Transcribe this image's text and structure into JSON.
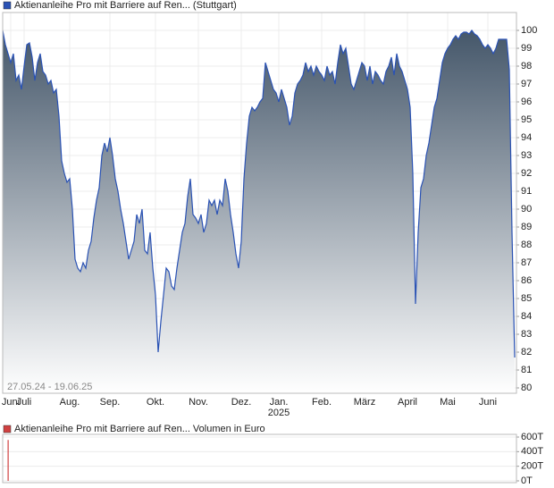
{
  "chart_data": [
    {
      "type": "area",
      "title": "Aktienanleihe Pro mit Barriere auf Ren... (Stuttgart)",
      "color": "#2a52b4",
      "fill_top": "#45576a",
      "date_range": "27.05.24 - 19.06.25",
      "year_label": "2025",
      "grid": true,
      "xlim": [
        0,
        191
      ],
      "ylim": [
        79.7,
        101
      ],
      "yticks": [
        80,
        81,
        82,
        83,
        84,
        85,
        86,
        87,
        88,
        89,
        90,
        91,
        92,
        93,
        94,
        95,
        96,
        97,
        98,
        99,
        100
      ],
      "xticks": [
        {
          "value": 3,
          "label": "Juni"
        },
        {
          "value": 8,
          "label": "Juli"
        },
        {
          "value": 25,
          "label": "Aug."
        },
        {
          "value": 40,
          "label": "Sep."
        },
        {
          "value": 57,
          "label": "Okt."
        },
        {
          "value": 73,
          "label": "Nov."
        },
        {
          "value": 89,
          "label": "Dez."
        },
        {
          "value": 103,
          "label": "Jan."
        },
        {
          "value": 119,
          "label": "Feb."
        },
        {
          "value": 135,
          "label": "März"
        },
        {
          "value": 151,
          "label": "April"
        },
        {
          "value": 166,
          "label": "Mai"
        },
        {
          "value": 181,
          "label": "Juni"
        }
      ],
      "values": [
        100,
        99.2,
        98.7,
        98.2,
        98.7,
        97.2,
        97.5,
        96.7,
        98,
        99.2,
        99.3,
        98.5,
        97.2,
        98.2,
        98.7,
        97.7,
        97.5,
        97,
        97.2,
        96.5,
        96.7,
        95.2,
        92.7,
        92,
        91.5,
        91.7,
        90,
        87.2,
        86.7,
        86.5,
        87,
        86.7,
        87.7,
        88.2,
        89.5,
        90.5,
        91.2,
        93,
        93.7,
        93.2,
        94,
        93,
        91.7,
        91,
        90,
        89.2,
        88.2,
        87.2,
        87.7,
        88.2,
        89.7,
        89.2,
        90,
        87.7,
        87.5,
        88.7,
        86.7,
        85.2,
        82,
        83.7,
        85.2,
        86.7,
        86.5,
        85.7,
        85.5,
        86.7,
        87.7,
        88.7,
        89.2,
        90.7,
        91.7,
        89.7,
        89.5,
        89.2,
        89.7,
        88.7,
        89.2,
        90.5,
        90.2,
        90.5,
        89.7,
        90.5,
        90.2,
        91.7,
        91,
        89.7,
        88.7,
        87.5,
        86.7,
        88.2,
        91.7,
        93.7,
        95.2,
        95.7,
        95.5,
        95.7,
        96,
        96.2,
        98.2,
        97.7,
        97.2,
        96.7,
        96.5,
        96,
        96.7,
        96.2,
        95.7,
        94.7,
        95.2,
        96.5,
        97,
        97.2,
        97.5,
        98.2,
        97.7,
        98,
        97.5,
        98,
        97.7,
        97.5,
        97.2,
        98,
        97.5,
        97.7,
        97,
        98.2,
        99.2,
        98.7,
        99,
        98,
        97,
        96.7,
        97.2,
        97.7,
        98.2,
        98,
        97.2,
        98,
        97,
        97.7,
        97.5,
        97.2,
        97,
        97.7,
        98,
        98.5,
        97.5,
        98.7,
        98,
        97.7,
        97.2,
        96.7,
        95.7,
        92,
        84.7,
        88.7,
        91.2,
        91.7,
        93,
        93.7,
        94.7,
        95.7,
        96.2,
        97.2,
        98.2,
        98.7,
        99,
        99.2,
        99.5,
        99.7,
        99.5,
        99.8,
        99.9,
        99.9,
        99.8,
        100,
        99.8,
        99.7,
        99.5,
        99.2,
        99,
        99.2,
        99,
        98.7,
        99,
        99.5,
        99.5,
        99.5,
        99.5,
        97.8,
        88.7,
        81.7
      ]
    },
    {
      "type": "bar",
      "title": "Aktienanleihe Pro mit Barriere auf Ren... Volumen in Euro",
      "color": "#d04040",
      "grid": true,
      "xlim": [
        0,
        191
      ],
      "ylim": [
        0,
        600000
      ],
      "yticks": [
        {
          "value": 0,
          "label": "0T"
        },
        {
          "value": 200000,
          "label": "200T"
        },
        {
          "value": 400000,
          "label": "400T"
        },
        {
          "value": 600000,
          "label": "600T"
        }
      ],
      "x": [
        2
      ],
      "values": [
        560000
      ]
    }
  ]
}
